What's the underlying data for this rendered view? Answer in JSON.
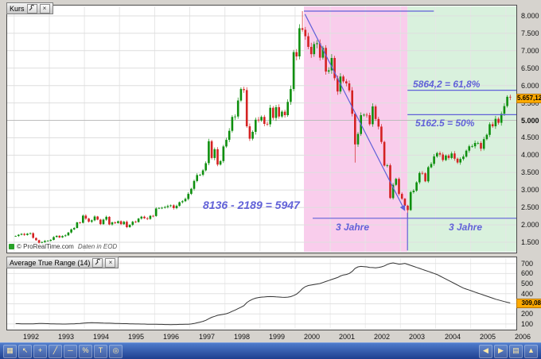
{
  "kurs_panel": {
    "title": "Kurs"
  },
  "atr_panel": {
    "title": "Average True Range (14)"
  },
  "watermark": {
    "copyright": "© ProRealTime.com",
    "note": "Daten in EOD"
  },
  "annotations": {
    "color": "#6161d8",
    "fib618_label": "5864,2 = 61,8%",
    "fib50_label": "5162.5 = 50%",
    "formula_label": "8136 - 2189 = 5947",
    "span_left_label": "3 Jahre",
    "span_right_label": "3 Jahre"
  },
  "price_axis": {
    "badge": "5.657,12",
    "badge_value": 5657.12,
    "ticks": [
      {
        "label": "8.000",
        "value": 8000
      },
      {
        "label": "7.500",
        "value": 7500
      },
      {
        "label": "7.000",
        "value": 7000
      },
      {
        "label": "6.500",
        "value": 6500
      },
      {
        "label": "6.000",
        "value": 6000
      },
      {
        "label": "5.500",
        "value": 5500
      },
      {
        "label": "5.000",
        "value": 5000,
        "emph": true
      },
      {
        "label": "4.500",
        "value": 4500
      },
      {
        "label": "4.000",
        "value": 4000
      },
      {
        "label": "3.500",
        "value": 3500
      },
      {
        "label": "3.000",
        "value": 3000
      },
      {
        "label": "2.500",
        "value": 2500
      },
      {
        "label": "2.000",
        "value": 2000
      },
      {
        "label": "1.500",
        "value": 1500
      }
    ]
  },
  "atr_axis": {
    "badge": "309,08",
    "badge_value": 309.08,
    "ticks": [
      {
        "label": "700",
        "value": 700
      },
      {
        "label": "600",
        "value": 600
      },
      {
        "label": "500",
        "value": 500
      },
      {
        "label": "400",
        "value": 400
      },
      {
        "label": "300",
        "value": 300
      },
      {
        "label": "200",
        "value": 200
      },
      {
        "label": "100",
        "value": 100
      }
    ]
  },
  "x_axis": {
    "years": [
      1992,
      1993,
      1994,
      1995,
      1996,
      1997,
      1998,
      1999,
      2000,
      2001,
      2002,
      2003,
      2004,
      2005,
      2006
    ]
  },
  "taskbar": {
    "left_icons": [
      {
        "name": "monitor-icon",
        "glyph": "▦"
      },
      {
        "name": "pointer-icon",
        "glyph": "↖"
      },
      {
        "name": "crosshair-icon",
        "glyph": "+"
      },
      {
        "name": "trendline-icon",
        "glyph": "╱"
      },
      {
        "name": "horizontal-line-icon",
        "glyph": "─"
      },
      {
        "name": "fibonacci-icon",
        "glyph": "%"
      },
      {
        "name": "text-tool-icon",
        "glyph": "T"
      },
      {
        "name": "zoom-icon",
        "glyph": "◎"
      }
    ],
    "right_icons": [
      {
        "name": "previous-icon",
        "glyph": "◀"
      },
      {
        "name": "next-icon",
        "glyph": "▶"
      },
      {
        "name": "settings-icon",
        "glyph": "▤"
      },
      {
        "name": "expand-icon",
        "glyph": "▲"
      }
    ]
  },
  "chart_data": [
    {
      "type": "candlestick",
      "title": "Kurs",
      "interval": "monthly",
      "t_start": 1991.8,
      "t_end": 2006.3,
      "y_axis": {
        "min": 1250,
        "max": 8250,
        "side": "right"
      },
      "last_price": 5657.12,
      "closes": [
        1680,
        1715,
        1740,
        1710,
        1748,
        1760,
        1625,
        1560,
        1485,
        1505,
        1540,
        1545,
        1570,
        1650,
        1685,
        1640,
        1678,
        1700,
        1780,
        1870,
        1910,
        2070,
        2060,
        2265,
        2180,
        2090,
        2130,
        2240,
        2150,
        2020,
        2150,
        2230,
        2010,
        2070,
        2050,
        2105,
        2020,
        2090,
        1935,
        2000,
        2090,
        2080,
        2180,
        2235,
        2190,
        2170,
        2260,
        2255,
        2470,
        2485,
        2490,
        2510,
        2540,
        2560,
        2480,
        2545,
        2650,
        2680,
        2745,
        2890,
        3035,
        3260,
        3430,
        3440,
        3565,
        3770,
        4400,
        3920,
        4170,
        3730,
        3830,
        4250,
        4440,
        4700,
        5100,
        5110,
        5570,
        5900,
        5870,
        4830,
        4475,
        4670,
        5020,
        5000,
        5100,
        4900,
        4885,
        5360,
        5070,
        5380,
        5110,
        5250,
        5150,
        5530,
        5900,
        6960,
        6835,
        7645,
        7600,
        7415,
        7110,
        6900,
        7190,
        7215,
        6800,
        7080,
        6400,
        6435,
        6790,
        6210,
        5830,
        6260,
        6120,
        6060,
        5860,
        5190,
        4310,
        4610,
        5150,
        5160,
        5150,
        4890,
        5400,
        5040,
        4820,
        4380,
        3700,
        3710,
        2770,
        3150,
        3320,
        2890,
        2750,
        2550,
        2425,
        2940,
        2980,
        3220,
        3490,
        3480,
        3250,
        3655,
        3750,
        3965,
        4060,
        4020,
        3860,
        3990,
        3920,
        4050,
        3900,
        3790,
        3890,
        3960,
        4130,
        4255,
        4255,
        4350,
        4350,
        4185,
        4460,
        4585,
        4890,
        4830,
        5045,
        4930,
        5190,
        5410,
        5675,
        5657.12
      ],
      "overrides": {
        "98": {
          "high": 8136
        },
        "116": {
          "low": 3787
        },
        "134": {
          "low": 2189
        }
      },
      "regions": [
        {
          "from": 2000.25,
          "to": 2003.2,
          "color": "#f9cdec",
          "label": "3 Jahre"
        },
        {
          "from": 2003.2,
          "to": 2006.3,
          "color": "#d9f1dd",
          "label": "3 Jahre"
        }
      ],
      "lines": [
        {
          "type": "h",
          "p": 8136,
          "t1": 2000.25,
          "t2": 2003.95
        },
        {
          "type": "h",
          "p": 2189,
          "t1": 2000.5,
          "t2": 2006.3
        },
        {
          "type": "h",
          "p": 5864.2,
          "t1": 2003.2,
          "t2": 2006.3
        },
        {
          "type": "h",
          "p": 5162.5,
          "t1": 2003.2,
          "t2": 2006.3
        },
        {
          "type": "v",
          "t": 2003.2,
          "p1": 2350,
          "p2": 1265
        },
        {
          "type": "arrow",
          "t1": 2000.28,
          "p1": 8050,
          "t2": 2003.12,
          "p2": 2420
        }
      ],
      "key_points": {
        "peak": 8136,
        "trough": 2189,
        "difference": 5947,
        "fib_61_8": 5864.2,
        "fib_50": 5162.5
      }
    },
    {
      "type": "line",
      "title": "Average True Range (14)",
      "y_axis": {
        "min": 60,
        "max": 745,
        "side": "right"
      },
      "last_value": 309.08,
      "values": [
        104,
        103,
        102,
        102,
        101,
        101,
        102,
        103,
        105,
        105,
        104,
        103,
        102,
        101,
        100,
        100,
        99,
        99,
        100,
        101,
        102,
        104,
        106,
        108,
        110,
        112,
        113,
        112,
        111,
        110,
        109,
        108,
        108,
        107,
        106,
        105,
        104,
        103,
        103,
        102,
        101,
        100,
        100,
        99,
        99,
        98,
        98,
        97,
        97,
        96,
        96,
        95,
        95,
        94,
        95,
        95,
        96,
        96,
        97,
        98,
        100,
        105,
        112,
        118,
        126,
        136,
        152,
        166,
        176,
        186,
        191,
        196,
        202,
        212,
        226,
        238,
        252,
        266,
        282,
        312,
        332,
        346,
        356,
        362,
        366,
        368,
        371,
        372,
        371,
        369,
        367,
        365,
        364,
        366,
        371,
        382,
        396,
        420,
        450,
        470,
        481,
        486,
        491,
        496,
        501,
        511,
        521,
        531,
        541,
        551,
        561,
        576,
        586,
        591,
        601,
        621,
        651,
        666,
        671,
        669,
        666,
        661,
        659,
        656,
        661,
        666,
        676,
        691,
        701,
        706,
        699,
        693,
        696,
        701,
        691,
        681,
        671,
        661,
        651,
        641,
        631,
        621,
        611,
        601,
        591,
        576,
        561,
        546,
        531,
        516,
        501,
        486,
        471,
        456,
        446,
        436,
        426,
        416,
        406,
        396,
        386,
        376,
        366,
        356,
        346,
        338,
        330,
        322,
        315,
        309.08
      ]
    }
  ]
}
